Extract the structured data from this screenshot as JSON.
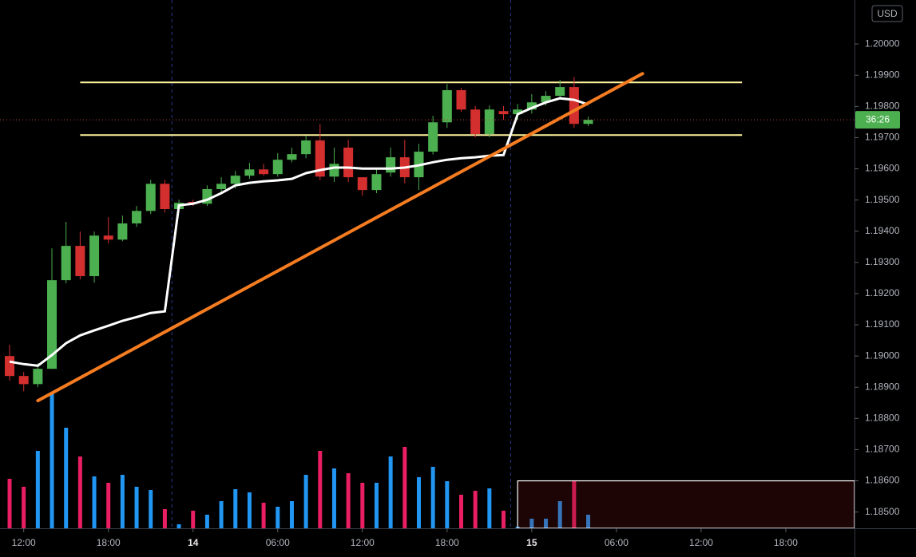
{
  "chart_data": {
    "type": "candlestick",
    "currency": "USD",
    "countdown": "36:26",
    "up_color": "#4caf50",
    "down_color": "#d32f2f",
    "volume_up_color": "#2196f3",
    "volume_down_color": "#e91e63",
    "xlim": [
      -0.68,
      59.87
    ],
    "ylim": [
      1.18448,
      1.20141
    ],
    "session_breaks": [
      11.5,
      35.5
    ],
    "xticks": [
      {
        "value": 1,
        "label": "12:00"
      },
      {
        "value": 7,
        "label": "18:00"
      },
      {
        "value": 13,
        "label": "14"
      },
      {
        "value": 19,
        "label": "06:00"
      },
      {
        "value": 25,
        "label": "12:00"
      },
      {
        "value": 31,
        "label": "18:00"
      },
      {
        "value": 37,
        "label": "15"
      },
      {
        "value": 43,
        "label": "06:00"
      },
      {
        "value": 49,
        "label": "12:00"
      },
      {
        "value": 55,
        "label": "18:00"
      }
    ],
    "yticks": [
      {
        "value": 1.185,
        "label": "1.18500"
      },
      {
        "value": 1.186,
        "label": "1.18600"
      },
      {
        "value": 1.187,
        "label": "1.18700"
      },
      {
        "value": 1.188,
        "label": "1.18800"
      },
      {
        "value": 1.189,
        "label": "1.18900"
      },
      {
        "value": 1.19,
        "label": "1.19000"
      },
      {
        "value": 1.191,
        "label": "1.19100"
      },
      {
        "value": 1.192,
        "label": "1.19200"
      },
      {
        "value": 1.193,
        "label": "1.19300"
      },
      {
        "value": 1.194,
        "label": "1.19400"
      },
      {
        "value": 1.195,
        "label": "1.19500"
      },
      {
        "value": 1.196,
        "label": "1.19600"
      },
      {
        "value": 1.197,
        "label": "1.19700"
      },
      {
        "value": 1.198,
        "label": "1.19800"
      },
      {
        "value": 1.199,
        "label": "1.19900"
      },
      {
        "value": 1.2,
        "label": "1.20000"
      }
    ],
    "open": [
      1.19,
      1.18936,
      1.1891,
      1.18959,
      1.19243,
      1.19353,
      1.19256,
      1.19386,
      1.19373,
      1.19425,
      1.19465,
      1.19552,
      1.19471,
      1.19494,
      1.19488,
      1.19535,
      1.19552,
      1.19578,
      1.19598,
      1.19583,
      1.19629,
      1.19647,
      1.19691,
      1.19575,
      1.19668,
      1.19573,
      1.19532,
      1.19588,
      1.19637,
      1.19573,
      1.19655,
      1.19749,
      1.19852,
      1.1979,
      1.19711,
      1.19785,
      1.19775,
      1.1979,
      1.19813,
      1.19834,
      1.19862,
      1.19744
    ],
    "high": [
      1.19036,
      1.18949,
      1.18977,
      1.19345,
      1.1943,
      1.19399,
      1.19399,
      1.19445,
      1.1945,
      1.19481,
      1.19565,
      1.19565,
      1.19501,
      1.19501,
      1.19547,
      1.19573,
      1.19593,
      1.19619,
      1.19616,
      1.1965,
      1.19668,
      1.19706,
      1.19744,
      1.19668,
      1.19693,
      1.19558,
      1.19604,
      1.19668,
      1.19693,
      1.1968,
      1.1977,
      1.19872,
      1.19859,
      1.19801,
      1.19803,
      1.19801,
      1.19808,
      1.19839,
      1.19849,
      1.19885,
      1.19895,
      1.19767
    ],
    "low": [
      1.18921,
      1.18887,
      1.189,
      1.18959,
      1.19233,
      1.19246,
      1.19235,
      1.19361,
      1.19368,
      1.19414,
      1.19455,
      1.1946,
      1.1946,
      1.19481,
      1.19481,
      1.19527,
      1.19537,
      1.19568,
      1.19578,
      1.19575,
      1.19621,
      1.19634,
      1.19563,
      1.19558,
      1.19558,
      1.19514,
      1.19522,
      1.19575,
      1.19553,
      1.19532,
      1.19646,
      1.19731,
      1.19783,
      1.19701,
      1.19701,
      1.19757,
      1.19757,
      1.19777,
      1.19803,
      1.19824,
      1.19731,
      1.19737
    ],
    "close": [
      1.18936,
      1.1891,
      1.18959,
      1.19243,
      1.19353,
      1.19256,
      1.19386,
      1.19373,
      1.19425,
      1.19465,
      1.19552,
      1.19471,
      1.19491,
      1.19488,
      1.19535,
      1.19552,
      1.19578,
      1.19598,
      1.19583,
      1.19629,
      1.19647,
      1.19691,
      1.19575,
      1.19616,
      1.19573,
      1.19532,
      1.19583,
      1.19637,
      1.19573,
      1.19655,
      1.19749,
      1.19852,
      1.1979,
      1.19711,
      1.1979,
      1.19775,
      1.1979,
      1.19813,
      1.19834,
      1.19862,
      1.19744,
      1.19757
    ],
    "volume": [
      62,
      52,
      97,
      169,
      126,
      90,
      65,
      57,
      67,
      52,
      48,
      24,
      5,
      22,
      17,
      34,
      49,
      45,
      32,
      27,
      34,
      67,
      97,
      75,
      69,
      57,
      57,
      90,
      102,
      64,
      77,
      59,
      42,
      47,
      50,
      22,
      2,
      12,
      12,
      34,
      60,
      17
    ],
    "ma": {
      "color": "#ffffff",
      "values": [
        1.18982,
        1.18974,
        1.18969,
        1.19003,
        1.19041,
        1.19066,
        1.19082,
        1.19097,
        1.19113,
        1.19125,
        1.19138,
        1.19143,
        1.19483,
        1.19488,
        1.19501,
        1.19522,
        1.19547,
        1.19555,
        1.1956,
        1.19563,
        1.19568,
        1.19586,
        1.19596,
        1.19604,
        1.19604,
        1.19601,
        1.19601,
        1.19601,
        1.19604,
        1.19611,
        1.19621,
        1.19629,
        1.19634,
        1.19637,
        1.19642,
        1.19644,
        1.19775,
        1.19795,
        1.19813,
        1.19826,
        1.19821,
        1.19806
      ]
    },
    "drawings": [
      {
        "type": "trend",
        "color": "#f57c20",
        "from": {
          "x": 2,
          "y": 1.18857
        },
        "to": {
          "x": 44.85,
          "y": 1.19905
        }
      },
      {
        "type": "horizontal",
        "color": "#fff59d",
        "from": {
          "x": 5,
          "y": 1.19877
        },
        "to": {
          "x": 51.9,
          "y": 1.19877
        }
      },
      {
        "type": "horizontal",
        "color": "#fff59d",
        "from": {
          "x": 5,
          "y": 1.19708
        },
        "to": {
          "x": 51.9,
          "y": 1.19708
        }
      },
      {
        "type": "rectangle",
        "color": "#ffffff",
        "from": {
          "x": 36,
          "y": 1.186
        },
        "to": {
          "x": 59.87,
          "y": 1.18448
        }
      }
    ]
  }
}
